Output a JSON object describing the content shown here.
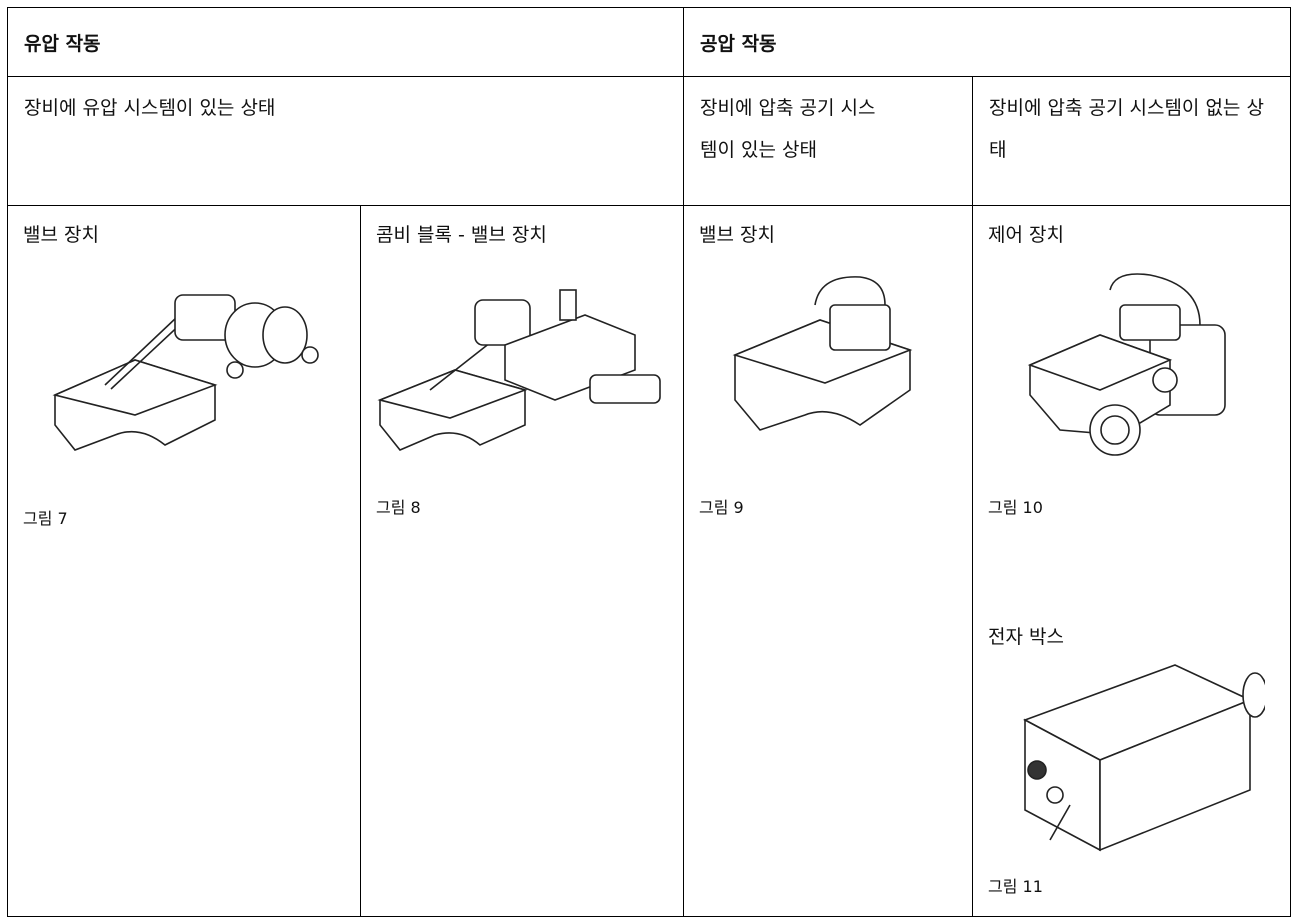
{
  "table": {
    "header": [
      "유압 작동",
      "공압 작동"
    ],
    "conditions": [
      "장비에 유압 시스템이 있는 상태",
      "장비에 압축 공기 시스템이 있는 상태",
      "장비에 압축 공기 시스템이 없는 상태"
    ],
    "cells": [
      {
        "title": "밸브 장치",
        "caption": "그림 7"
      },
      {
        "title": "콤비 블록 - 밸브 장치",
        "caption": "그림 8"
      },
      {
        "title": "밸브 장치",
        "caption": "그림 9"
      },
      {
        "title": "제어 장치",
        "caption": "그림 10",
        "sub_title": "전자 박스",
        "sub_caption": "그림 11"
      }
    ]
  }
}
